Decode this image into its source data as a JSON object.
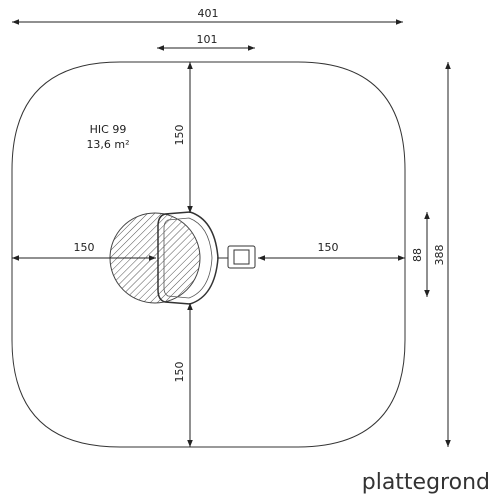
{
  "dimensions": [
    "401",
    "101",
    "150",
    "150",
    "150",
    "150",
    "88",
    "388"
  ],
  "area": {
    "name": "HIC 99",
    "size": "13,6 m²"
  },
  "caption": "plattegrond"
}
